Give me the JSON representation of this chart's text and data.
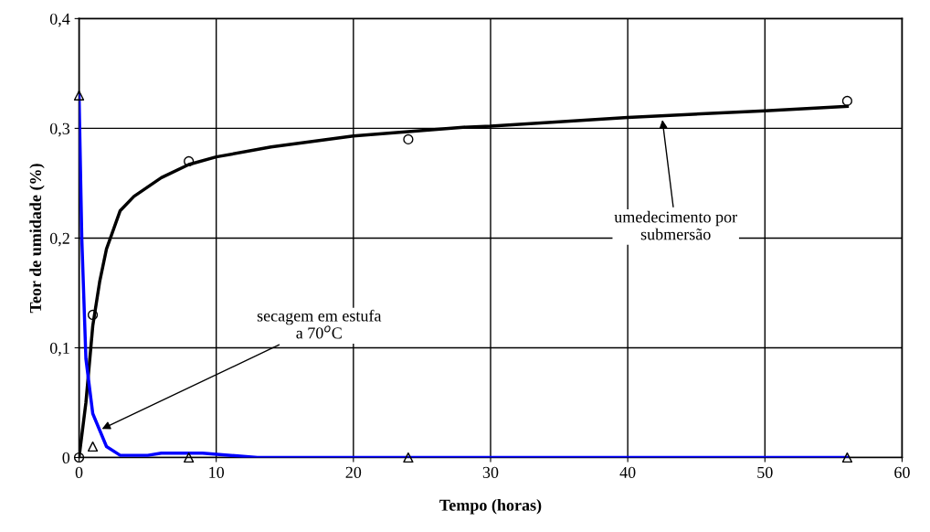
{
  "chart_data": {
    "type": "line",
    "xlabel": "Tempo (horas)",
    "ylabel": "Teor de umidade (%)",
    "xlim": [
      0,
      60
    ],
    "xticks": [
      0,
      10,
      20,
      30,
      40,
      50,
      60
    ],
    "ylim": [
      0,
      0.4
    ],
    "yticks": [
      {
        "value": 0,
        "label": "0"
      },
      {
        "value": 0.1,
        "label": "0,1"
      },
      {
        "value": 0.2,
        "label": "0,2"
      },
      {
        "value": 0.3,
        "label": "0,3"
      },
      {
        "value": 0.4,
        "label": "0,4"
      }
    ],
    "grid": true,
    "legend": false,
    "series": [
      {
        "color": "#000000",
        "marker": "none",
        "x": [
          0,
          0.5,
          1,
          1.5,
          2,
          3,
          4,
          6,
          8,
          10,
          14,
          20,
          24,
          28,
          30,
          40,
          50,
          56
        ],
        "values": [
          0,
          0.05,
          0.12,
          0.16,
          0.19,
          0.225,
          0.238,
          0.255,
          0.267,
          0.274,
          0.283,
          0.293,
          0.297,
          0.301,
          0.302,
          0.31,
          0.316,
          0.32
        ]
      },
      {
        "color": "#0000ff",
        "marker": "none",
        "x": [
          0,
          0.2,
          0.5,
          1,
          2,
          3,
          5,
          6,
          9,
          13,
          56
        ],
        "values": [
          0.33,
          0.2,
          0.09,
          0.04,
          0.01,
          0.002,
          0.002,
          0.004,
          0.004,
          0,
          0
        ]
      },
      {
        "type": "scatter",
        "color": "#000000",
        "marker": "circle",
        "x": [
          0,
          1,
          8,
          24,
          56
        ],
        "values": [
          0,
          0.13,
          0.27,
          0.29,
          0.325
        ]
      },
      {
        "type": "scatter",
        "color": "#000000",
        "marker": "triangle",
        "x": [
          0,
          1,
          8,
          24,
          56
        ],
        "values": [
          0.33,
          0.01,
          0,
          0,
          0
        ]
      }
    ],
    "annotations": [
      {
        "text": "secagem em estufa\na 70$^{o}$C",
        "x": 1.5,
        "y": 0.025
      },
      {
        "text": "umedecimento por\nsubmersão",
        "x": 42.5,
        "y": 0.31
      }
    ]
  }
}
